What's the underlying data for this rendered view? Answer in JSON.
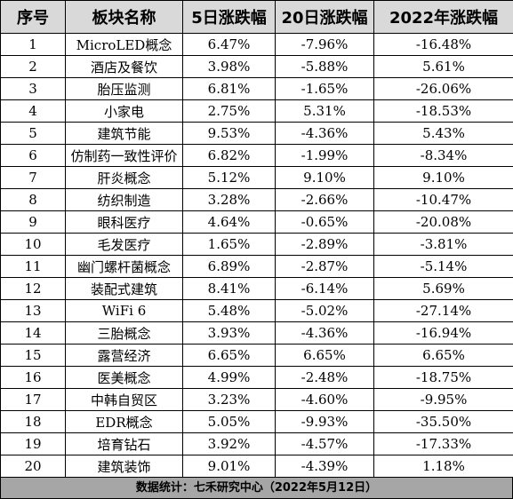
{
  "table": {
    "headers": [
      "序号",
      "板块名称",
      "5日涨跌幅",
      "20日涨跌幅",
      "2022年涨跌幅"
    ],
    "rows": [
      {
        "no": "1",
        "name": "MicroLED概念",
        "d5": "6.47%",
        "d20": "-7.96%",
        "ytd": "-16.48%"
      },
      {
        "no": "2",
        "name": "酒店及餐饮",
        "d5": "3.98%",
        "d20": "-5.88%",
        "ytd": "5.61%"
      },
      {
        "no": "3",
        "name": "胎压监测",
        "d5": "6.81%",
        "d20": "-1.65%",
        "ytd": "-26.06%"
      },
      {
        "no": "4",
        "name": "小家电",
        "d5": "2.75%",
        "d20": "5.31%",
        "ytd": "-18.53%"
      },
      {
        "no": "5",
        "name": "建筑节能",
        "d5": "9.53%",
        "d20": "-4.36%",
        "ytd": "5.43%"
      },
      {
        "no": "6",
        "name": "仿制药一致性评价",
        "d5": "6.82%",
        "d20": "-1.99%",
        "ytd": "-8.34%"
      },
      {
        "no": "7",
        "name": "肝炎概念",
        "d5": "5.12%",
        "d20": "9.10%",
        "ytd": "9.10%"
      },
      {
        "no": "8",
        "name": "纺织制造",
        "d5": "3.28%",
        "d20": "-2.66%",
        "ytd": "-10.47%"
      },
      {
        "no": "9",
        "name": "眼科医疗",
        "d5": "4.64%",
        "d20": "-0.65%",
        "ytd": "-20.08%"
      },
      {
        "no": "10",
        "name": "毛发医疗",
        "d5": "1.65%",
        "d20": "-2.89%",
        "ytd": "-3.81%"
      },
      {
        "no": "11",
        "name": "幽门螺杆菌概念",
        "d5": "6.89%",
        "d20": "-2.87%",
        "ytd": "-5.14%"
      },
      {
        "no": "12",
        "name": "装配式建筑",
        "d5": "8.41%",
        "d20": "-6.14%",
        "ytd": "5.69%"
      },
      {
        "no": "13",
        "name": "WiFi 6",
        "d5": "5.48%",
        "d20": "-5.02%",
        "ytd": "-27.14%"
      },
      {
        "no": "14",
        "name": "三胎概念",
        "d5": "3.93%",
        "d20": "-4.36%",
        "ytd": "-16.94%"
      },
      {
        "no": "15",
        "name": "露营经济",
        "d5": "6.65%",
        "d20": "6.65%",
        "ytd": "6.65%"
      },
      {
        "no": "16",
        "name": "医美概念",
        "d5": "4.99%",
        "d20": "-2.48%",
        "ytd": "-18.75%"
      },
      {
        "no": "17",
        "name": "中韩自贸区",
        "d5": "3.23%",
        "d20": "-4.60%",
        "ytd": "-9.95%"
      },
      {
        "no": "18",
        "name": "EDR概念",
        "d5": "5.05%",
        "d20": "-9.93%",
        "ytd": "-35.50%"
      },
      {
        "no": "19",
        "name": "培育钻石",
        "d5": "3.92%",
        "d20": "-4.57%",
        "ytd": "-17.33%"
      },
      {
        "no": "20",
        "name": "建筑装饰",
        "d5": "9.01%",
        "d20": "-4.39%",
        "ytd": "1.18%"
      }
    ]
  },
  "footer": {
    "text": "数据统计：七禾研究中心（2022年5月12日）"
  },
  "colors": {
    "header_bg": "#d9d9d9",
    "footer_bg": "#a6a6a6",
    "border": "#000000"
  }
}
